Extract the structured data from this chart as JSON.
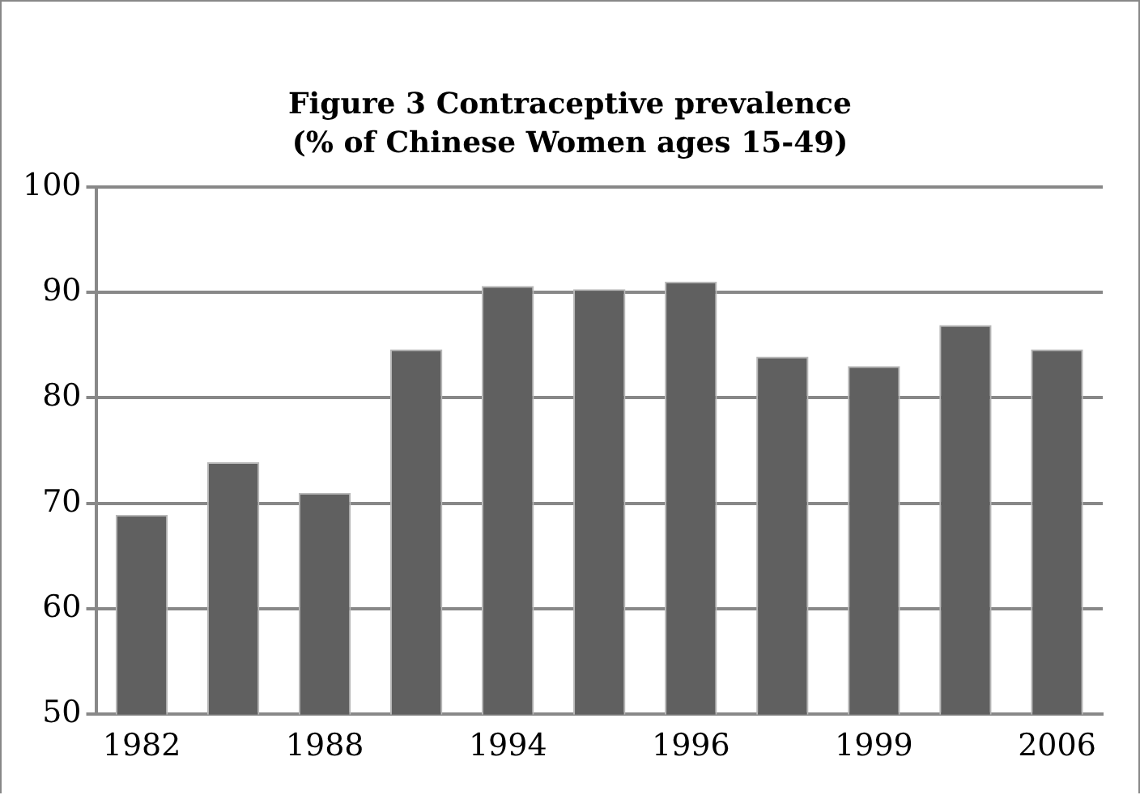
{
  "chart_data": {
    "type": "bar",
    "title": "Figure 3 Contraceptive prevalence\n(% of Chinese Women ages 15-49)",
    "categories": [
      "1982",
      null,
      "1988",
      null,
      "1994",
      null,
      "1996",
      null,
      "1999",
      null,
      "2006"
    ],
    "values": [
      68.9,
      73.9,
      71.0,
      84.6,
      90.6,
      90.3,
      91.0,
      83.9,
      83.0,
      86.9,
      84.6
    ],
    "color": "#606060",
    "ylim": [
      50,
      100
    ],
    "yticks": [
      50,
      60,
      70,
      80,
      90,
      100
    ],
    "grid": "y",
    "legend": false
  }
}
